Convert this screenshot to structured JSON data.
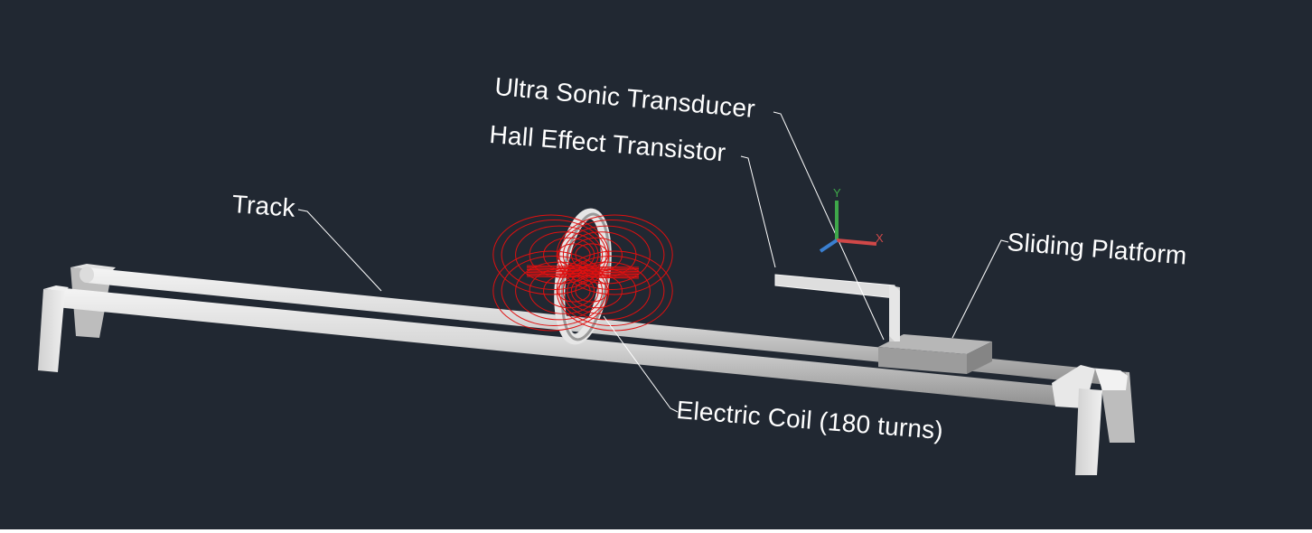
{
  "labels": {
    "ultrasonic_transducer": "Ultra Sonic Transducer",
    "hall_effect_transistor": "Hall Effect Transistor",
    "track": "Track",
    "sliding_platform": "Sliding Platform",
    "electric_coil": "Electric Coil (180 turns)"
  },
  "axes_indicator": {
    "y_label": "Y",
    "x_label": "X"
  },
  "colors": {
    "background": "#212832",
    "label_text": "#ffffff",
    "field_lines": "#e01010",
    "metal_light": "#e6e6e6",
    "metal_dark": "#9a9a9a",
    "axis_x": "#d04848",
    "axis_y": "#3fa84a",
    "axis_z": "#3a7fd0"
  }
}
